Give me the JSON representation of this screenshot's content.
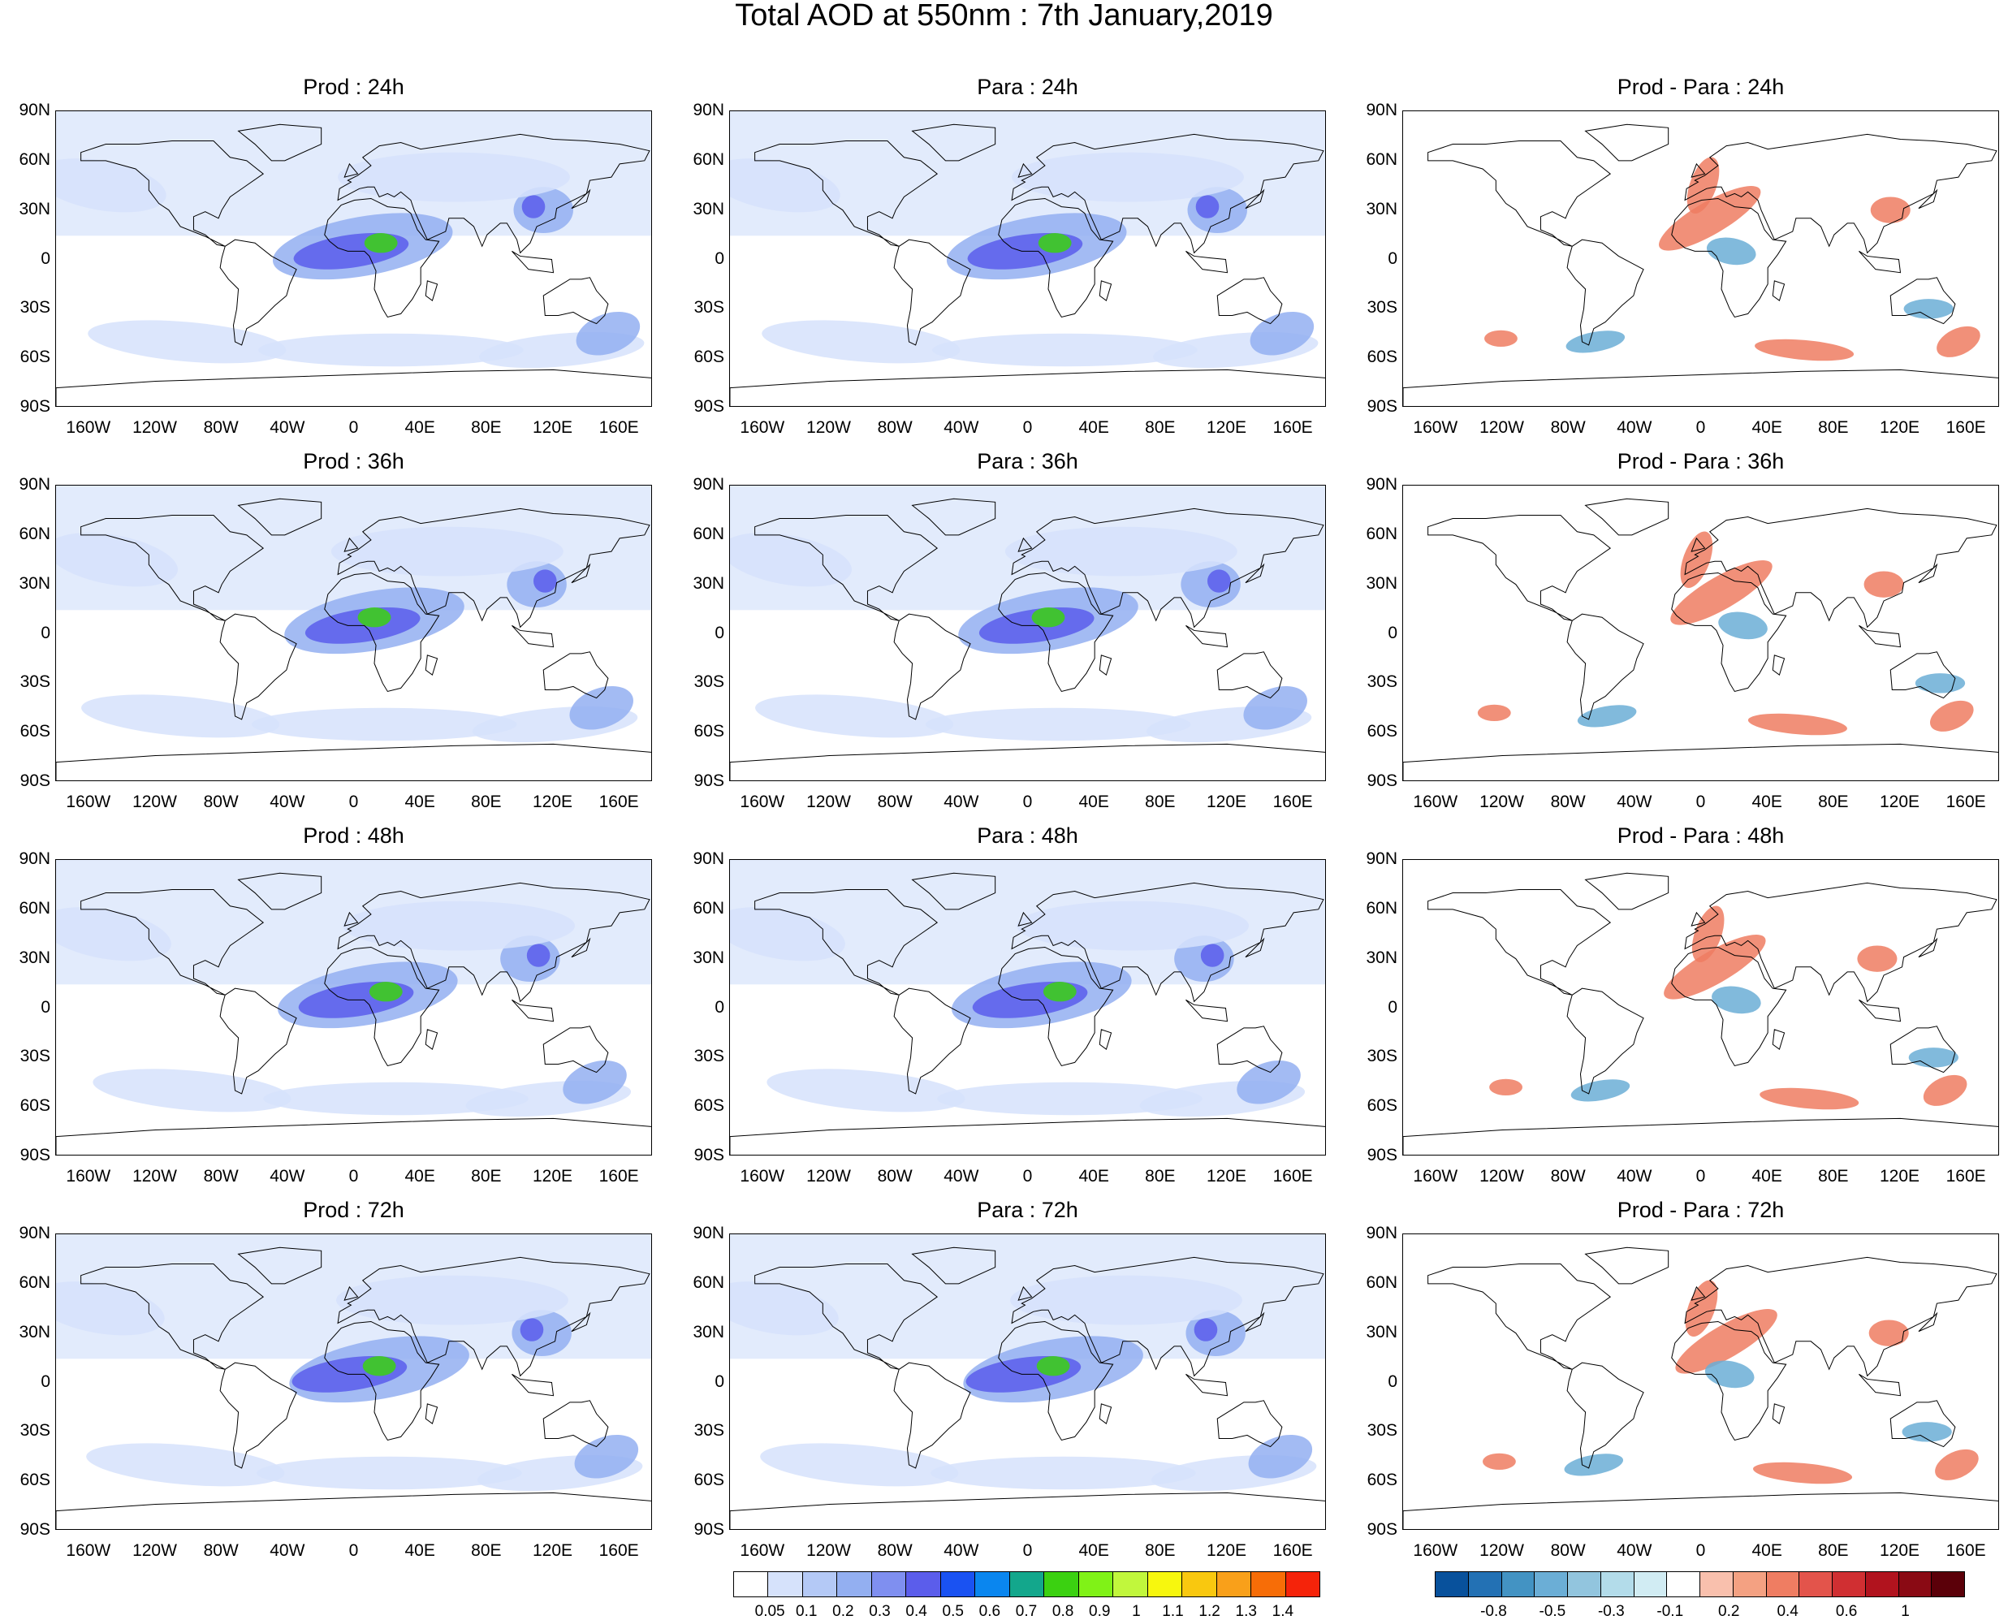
{
  "title": "Total AOD at 550nm : 7th January,2019",
  "lat_labels": [
    "90N",
    "60N",
    "30N",
    "0",
    "30S",
    "60S",
    "90S"
  ],
  "lon_labels": [
    "160W",
    "120W",
    "80W",
    "40W",
    "0",
    "40E",
    "80E",
    "120E",
    "160E"
  ],
  "panels": [
    {
      "title": "Prod : 24h",
      "kind": "aod"
    },
    {
      "title": "Para : 24h",
      "kind": "aod"
    },
    {
      "title": "Prod - Para : 24h",
      "kind": "diff"
    },
    {
      "title": "Prod : 36h",
      "kind": "aod"
    },
    {
      "title": "Para : 36h",
      "kind": "aod"
    },
    {
      "title": "Prod - Para : 36h",
      "kind": "diff"
    },
    {
      "title": "Prod : 48h",
      "kind": "aod"
    },
    {
      "title": "Para : 48h",
      "kind": "aod"
    },
    {
      "title": "Prod - Para : 48h",
      "kind": "diff"
    },
    {
      "title": "Prod : 72h",
      "kind": "aod"
    },
    {
      "title": "Para : 72h",
      "kind": "aod"
    },
    {
      "title": "Prod - Para : 72h",
      "kind": "diff"
    }
  ],
  "aod_colorbar": {
    "labels": [
      "0.05",
      "0.1",
      "0.2",
      "0.3",
      "0.4",
      "0.5",
      "0.6",
      "0.7",
      "0.8",
      "0.9",
      "1",
      "1.1",
      "1.2",
      "1.3",
      "1.4"
    ],
    "colors": [
      "#ffffff",
      "#d6e2fb",
      "#b4c9f6",
      "#93aff1",
      "#7f8ff0",
      "#5b5deb",
      "#1a52f2",
      "#0a86ef",
      "#13a78c",
      "#3bd111",
      "#80f217",
      "#c1f73c",
      "#f7f70e",
      "#f9c80f",
      "#f9a01a",
      "#f76d07",
      "#f5230a"
    ]
  },
  "diff_colorbar": {
    "labels": [
      "-0.8",
      "-0.5",
      "-0.3",
      "-0.1",
      "0.2",
      "0.4",
      "0.6",
      "1"
    ],
    "colors": [
      "#08519c",
      "#2371b4",
      "#4393c3",
      "#6baed6",
      "#92c5de",
      "#b3dcea",
      "#d1ecf3",
      "#ffffff",
      "#f9c0ad",
      "#f4a182",
      "#ef7d62",
      "#e3544b",
      "#d02f32",
      "#b1131e",
      "#8a0a14",
      "#5b0009"
    ]
  },
  "palette": {
    "land_outline": "#000000",
    "aod_light": "#d6e2fb",
    "aod_mid": "#93aff1",
    "aod_high": "#5b5deb",
    "aod_peak": "#3bd111",
    "diff_pos": "#ef7d62",
    "diff_neg": "#6baed6"
  }
}
